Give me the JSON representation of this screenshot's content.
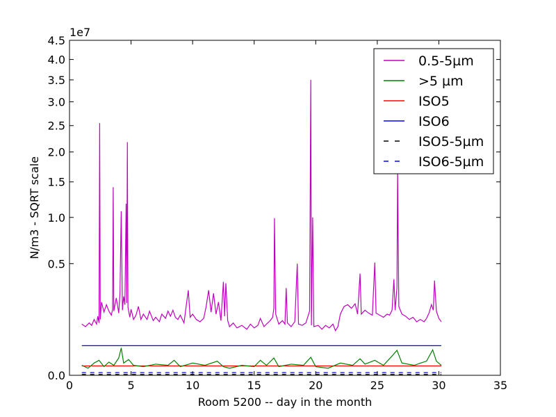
{
  "chart_data": {
    "type": "line",
    "title": "",
    "xlabel": "Room 5200 -- day in the month",
    "ylabel": "N/m3 - SQRT scale",
    "y_offset_text": "1e7",
    "y_scale": "sqrt",
    "xlim": [
      0,
      35
    ],
    "ylim": [
      0,
      45000000
    ],
    "x_ticks": [
      0,
      5,
      10,
      15,
      20,
      25,
      30,
      35
    ],
    "x_tick_labels": [
      "0",
      "5",
      "10",
      "15",
      "20",
      "25",
      "30",
      "35"
    ],
    "y_ticks": [
      0,
      5000000,
      10000000,
      15000000,
      20000000,
      25000000,
      30000000,
      35000000,
      40000000,
      45000000
    ],
    "y_tick_labels": [
      "0.0",
      "0.5",
      "1.0",
      "1.5",
      "2.0",
      "2.5",
      "3.0",
      "3.5",
      "4.0",
      "4.5"
    ],
    "grid": false,
    "legend_position": "top-right",
    "series": [
      {
        "name": "0.5-5µm",
        "color": "#bf00bf",
        "style": "solid",
        "points": [
          [
            1.0,
            1050000
          ],
          [
            1.3,
            950000
          ],
          [
            1.6,
            1100000
          ],
          [
            1.8,
            1000000
          ],
          [
            2.0,
            1250000
          ],
          [
            2.2,
            1050000
          ],
          [
            2.3,
            1400000
          ],
          [
            2.4,
            1100000
          ],
          [
            2.45,
            25500000
          ],
          [
            2.5,
            1250000
          ],
          [
            2.6,
            2150000
          ],
          [
            2.8,
            1600000
          ],
          [
            3.0,
            2000000
          ],
          [
            3.2,
            1650000
          ],
          [
            3.4,
            1450000
          ],
          [
            3.5,
            1750000
          ],
          [
            3.55,
            14200000
          ],
          [
            3.6,
            1650000
          ],
          [
            3.8,
            2400000
          ],
          [
            4.0,
            1550000
          ],
          [
            4.1,
            2700000
          ],
          [
            4.2,
            10800000
          ],
          [
            4.3,
            1700000
          ],
          [
            4.4,
            2500000
          ],
          [
            4.5,
            2000000
          ],
          [
            4.6,
            11800000
          ],
          [
            4.65,
            2100000
          ],
          [
            4.7,
            21800000
          ],
          [
            4.75,
            1850000
          ],
          [
            4.9,
            1350000
          ],
          [
            5.0,
            1750000
          ],
          [
            5.2,
            1250000
          ],
          [
            5.4,
            1450000
          ],
          [
            5.6,
            1900000
          ],
          [
            5.8,
            1250000
          ],
          [
            6.0,
            1500000
          ],
          [
            6.3,
            1250000
          ],
          [
            6.5,
            1650000
          ],
          [
            6.8,
            1200000
          ],
          [
            7.0,
            1350000
          ],
          [
            7.3,
            1150000
          ],
          [
            7.5,
            1500000
          ],
          [
            7.8,
            1300000
          ],
          [
            8.0,
            1650000
          ],
          [
            8.2,
            1400000
          ],
          [
            8.4,
            1700000
          ],
          [
            8.6,
            1350000
          ],
          [
            8.8,
            1250000
          ],
          [
            9.0,
            1450000
          ],
          [
            9.3,
            1100000
          ],
          [
            9.5,
            2050000
          ],
          [
            9.65,
            2900000
          ],
          [
            9.8,
            1350000
          ],
          [
            10.0,
            1500000
          ],
          [
            10.3,
            1250000
          ],
          [
            10.6,
            1150000
          ],
          [
            10.9,
            1300000
          ],
          [
            11.1,
            1900000
          ],
          [
            11.3,
            2900000
          ],
          [
            11.5,
            1600000
          ],
          [
            11.7,
            2700000
          ],
          [
            11.9,
            1500000
          ],
          [
            12.1,
            2150000
          ],
          [
            12.3,
            1200000
          ],
          [
            12.5,
            3500000
          ],
          [
            12.6,
            1400000
          ],
          [
            12.7,
            3400000
          ],
          [
            12.85,
            1200000
          ],
          [
            13.0,
            950000
          ],
          [
            13.3,
            1100000
          ],
          [
            13.6,
            900000
          ],
          [
            14.0,
            1000000
          ],
          [
            14.4,
            850000
          ],
          [
            14.7,
            1050000
          ],
          [
            15.0,
            900000
          ],
          [
            15.3,
            1000000
          ],
          [
            15.5,
            1300000
          ],
          [
            15.8,
            950000
          ],
          [
            16.0,
            1050000
          ],
          [
            16.3,
            1200000
          ],
          [
            16.5,
            1350000
          ],
          [
            16.6,
            1800000
          ],
          [
            16.65,
            9900000
          ],
          [
            16.75,
            1500000
          ],
          [
            17.0,
            1050000
          ],
          [
            17.3,
            1200000
          ],
          [
            17.5,
            1050000
          ],
          [
            17.6,
            3050000
          ],
          [
            17.7,
            1100000
          ],
          [
            18.0,
            950000
          ],
          [
            18.3,
            1150000
          ],
          [
            18.5,
            5000000
          ],
          [
            18.6,
            1050000
          ],
          [
            18.9,
            1000000
          ],
          [
            19.2,
            1100000
          ],
          [
            19.5,
            1650000
          ],
          [
            19.6,
            35000000
          ],
          [
            19.65,
            1000000
          ],
          [
            19.75,
            10000000
          ],
          [
            19.85,
            950000
          ],
          [
            20.2,
            1000000
          ],
          [
            20.5,
            850000
          ],
          [
            20.8,
            1000000
          ],
          [
            21.1,
            900000
          ],
          [
            21.4,
            1050000
          ],
          [
            21.6,
            800000
          ],
          [
            21.8,
            950000
          ],
          [
            22.0,
            1500000
          ],
          [
            22.3,
            1900000
          ],
          [
            22.6,
            2000000
          ],
          [
            22.9,
            1800000
          ],
          [
            23.2,
            2050000
          ],
          [
            23.4,
            1500000
          ],
          [
            23.6,
            4150000
          ],
          [
            23.7,
            1500000
          ],
          [
            24.0,
            1700000
          ],
          [
            24.3,
            1550000
          ],
          [
            24.6,
            1450000
          ],
          [
            24.8,
            5100000
          ],
          [
            24.9,
            1550000
          ],
          [
            25.2,
            1450000
          ],
          [
            25.5,
            1350000
          ],
          [
            25.8,
            1500000
          ],
          [
            26.0,
            1450000
          ],
          [
            26.2,
            1700000
          ],
          [
            26.35,
            3700000
          ],
          [
            26.45,
            1700000
          ],
          [
            26.6,
            3100000
          ],
          [
            26.65,
            17000000
          ],
          [
            26.75,
            1900000
          ],
          [
            27.0,
            1500000
          ],
          [
            27.3,
            1400000
          ],
          [
            27.6,
            1250000
          ],
          [
            27.9,
            1350000
          ],
          [
            28.2,
            1150000
          ],
          [
            28.5,
            1250000
          ],
          [
            28.8,
            1150000
          ],
          [
            29.0,
            1300000
          ],
          [
            29.2,
            1550000
          ],
          [
            29.4,
            2000000
          ],
          [
            29.55,
            1700000
          ],
          [
            29.65,
            3600000
          ],
          [
            29.8,
            1650000
          ],
          [
            30.0,
            1300000
          ],
          [
            30.2,
            1150000
          ]
        ]
      },
      {
        "name": ">5 µm",
        "color": "#008000",
        "style": "solid",
        "points": [
          [
            1.0,
            40000
          ],
          [
            1.5,
            20000
          ],
          [
            2.0,
            60000
          ],
          [
            2.4,
            90000
          ],
          [
            2.8,
            30000
          ],
          [
            3.2,
            70000
          ],
          [
            3.6,
            40000
          ],
          [
            4.0,
            120000
          ],
          [
            4.2,
            300000
          ],
          [
            4.4,
            60000
          ],
          [
            4.8,
            100000
          ],
          [
            5.2,
            40000
          ],
          [
            6.0,
            30000
          ],
          [
            7.0,
            50000
          ],
          [
            8.0,
            40000
          ],
          [
            8.5,
            90000
          ],
          [
            9.0,
            30000
          ],
          [
            10.0,
            60000
          ],
          [
            11.0,
            40000
          ],
          [
            12.0,
            80000
          ],
          [
            12.5,
            30000
          ],
          [
            13.0,
            20000
          ],
          [
            14.0,
            40000
          ],
          [
            15.0,
            30000
          ],
          [
            15.5,
            90000
          ],
          [
            16.0,
            40000
          ],
          [
            16.6,
            120000
          ],
          [
            17.0,
            30000
          ],
          [
            18.0,
            50000
          ],
          [
            19.0,
            40000
          ],
          [
            19.6,
            130000
          ],
          [
            20.0,
            30000
          ],
          [
            21.0,
            20000
          ],
          [
            22.0,
            60000
          ],
          [
            23.0,
            40000
          ],
          [
            23.6,
            110000
          ],
          [
            24.0,
            50000
          ],
          [
            24.8,
            90000
          ],
          [
            25.5,
            40000
          ],
          [
            26.2,
            150000
          ],
          [
            26.6,
            250000
          ],
          [
            27.0,
            60000
          ],
          [
            28.0,
            40000
          ],
          [
            28.5,
            60000
          ],
          [
            29.0,
            80000
          ],
          [
            29.5,
            260000
          ],
          [
            29.8,
            80000
          ],
          [
            30.2,
            40000
          ]
        ]
      },
      {
        "name": "ISO5",
        "color": "#ff0000",
        "style": "solid",
        "points": [
          [
            1.0,
            35200
          ],
          [
            30.2,
            35200
          ]
        ]
      },
      {
        "name": "ISO6",
        "color": "#0000ff",
        "style": "solid",
        "points": [
          [
            1.0,
            352000
          ],
          [
            30.2,
            352000
          ]
        ]
      },
      {
        "name": "ISO5-5µm",
        "color": "#000000",
        "style": "dashed",
        "points": [
          [
            1.0,
            293
          ],
          [
            30.2,
            293
          ]
        ]
      },
      {
        "name": "ISO6-5µm",
        "color": "#0000ff",
        "style": "dashed",
        "points": [
          [
            1.0,
            2930
          ],
          [
            30.2,
            2930
          ]
        ]
      }
    ]
  }
}
